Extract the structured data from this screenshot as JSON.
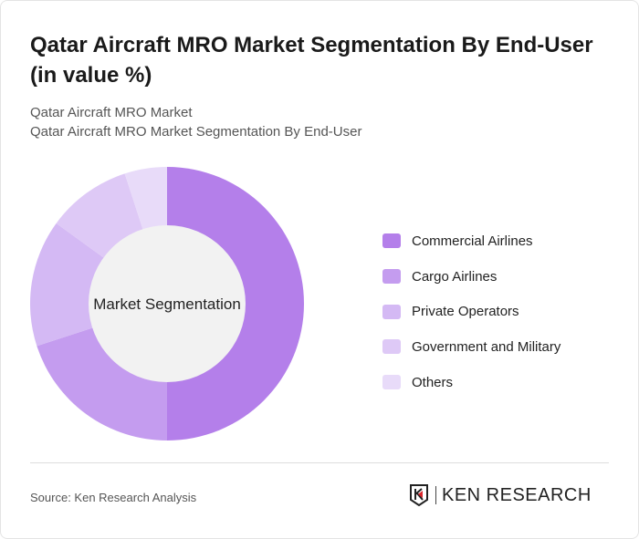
{
  "title": "Qatar Aircraft MRO Market Segmentation By End-User (in value %)",
  "subtitle1": "Qatar Aircraft MRO Market",
  "subtitle2": "Qatar Aircraft MRO Market Segmentation By End-User",
  "source": "Source: Ken Research Analysis",
  "logo_text": "KEN RESEARCH",
  "chart_data": {
    "type": "pie",
    "variant": "donut",
    "center_label": "Market Segmentation",
    "categories": [
      "Commercial Airlines",
      "Cargo Airlines",
      "Private Operators",
      "Government and Military",
      "Others"
    ],
    "values": [
      50,
      20,
      15,
      10,
      5
    ],
    "unit": "%",
    "colors": [
      "#b47fea",
      "#c49cef",
      "#d4b9f4",
      "#dec9f6",
      "#e8dbf9"
    ],
    "legend_position": "right"
  }
}
